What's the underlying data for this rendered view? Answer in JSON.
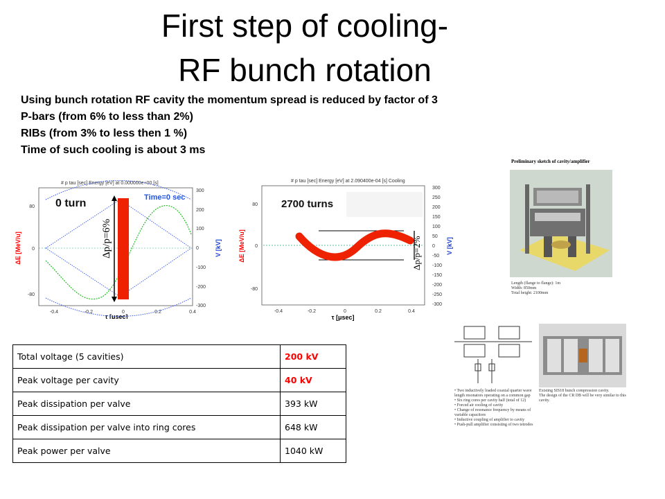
{
  "title_line1": "First step of cooling-",
  "title_line2": "RF bunch rotation",
  "bullets": [
    "Using bunch rotation RF cavity the momentum spread is reduced by factor of 3",
    "P-bars (from 6% to less than 2%)",
    "RIBs (from 3% to less then 1 %)",
    "Time of such cooling is about 3 ms"
  ],
  "plot1": {
    "header": "# p   tau [sec]   Energy [eV]   at 0.000000e+00 [s]",
    "label": "0 turn",
    "time_label": "Time=0 sec",
    "spread": "Δp/p=6%",
    "ylabel_left": "ΔE [MeV/u]",
    "ylabel_right": "V [kV]",
    "xlabel": "τ [μsec]",
    "yticks_left": [
      "80",
      "0",
      "-80"
    ],
    "yticks_right": [
      "300",
      "200",
      "100",
      "0",
      "-100",
      "-200",
      "-300"
    ],
    "xticks": [
      "-0.4",
      "-0.2",
      "0",
      "0.2",
      "0.4"
    ]
  },
  "plot2": {
    "header": "# p   tau [sec]   Energy [eV]   at 2.090400e-04 [s]   Cooling",
    "label": "2700 turns",
    "spread": "Δp/p=2%",
    "ylabel_left": "ΔE [MeV/u]",
    "ylabel_right": "V [kV]",
    "xlabel": "τ [μsec]",
    "yticks_left": [
      "80",
      "0",
      "-80"
    ],
    "yticks_right": [
      "300",
      "250",
      "200",
      "150",
      "100",
      "50",
      "0",
      "-50",
      "-100",
      "-150",
      "-200",
      "-250",
      "-300"
    ],
    "xticks": [
      "-0.4",
      "-0.2",
      "0",
      "0.2",
      "0.4"
    ]
  },
  "table": [
    {
      "label": "Total voltage (5 cavities)",
      "value": "200 kV",
      "red": true
    },
    {
      "label": "Peak voltage per cavity",
      "value": "40 kV",
      "red": true
    },
    {
      "label": "Peak dissipation per valve",
      "value": "393 kW",
      "red": false
    },
    {
      "label": "Peak dissipation per valve into ring cores",
      "value": "648 kW",
      "red": false
    },
    {
      "label": "Peak power per valve",
      "value": "1040 kW",
      "red": false
    }
  ],
  "sketch": {
    "title": "Preliminary sketch of cavity/amplifier",
    "specs": [
      {
        "k": "Length (flange to flange):",
        "v": "1m"
      },
      {
        "k": "Width:",
        "v": "850mm"
      },
      {
        "k": "Total height:",
        "v": "2100mm"
      }
    ]
  },
  "captions": {
    "left": [
      "• Two inductively loaded coaxial quarter wave length resonators operating on a common gap",
      "• Six ring cores per cavity half (total of 12)",
      "• Forced air cooling of cavity",
      "• Change of resonance frequency by means of variable capacitors",
      "• Inductive coupling of amplifier to cavity",
      "• Push-pull amplifier consisting of two tetrodes"
    ],
    "right": [
      "Existing SIS18 bunch compression cavity.",
      "The design of the CR DB will be very similar to this cavity."
    ]
  }
}
